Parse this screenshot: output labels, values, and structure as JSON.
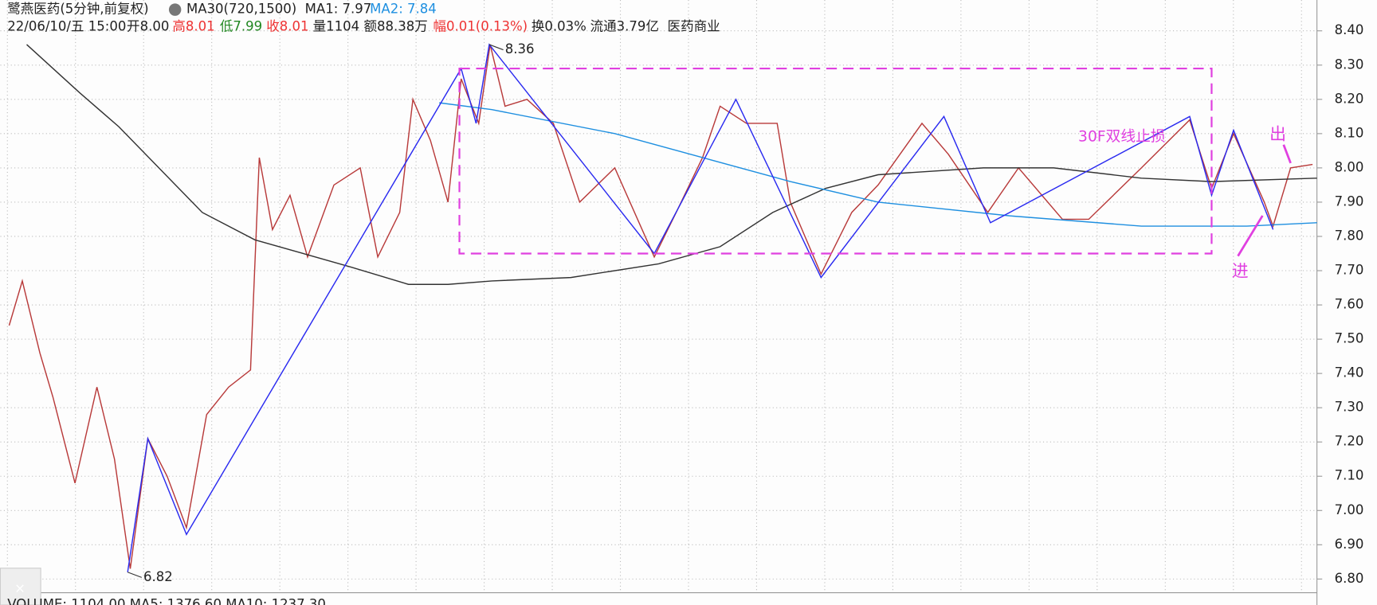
{
  "header": {
    "name": "鹭燕医药(5分钟,前复权)",
    "ma_setting": "MA30(720,1500)",
    "ma1": "MA1: 7.97",
    "ma2": "MA2: 7.84",
    "datetime": "22/06/10/五 15:00",
    "open": "开8.00",
    "high": "高8.01",
    "low": "低7.99",
    "close": "收8.01",
    "vol": "量1104",
    "amount": "额88.38万",
    "range": "幅0.01(0.13%)",
    "turnover": "换0.03%",
    "float": "流通3.79亿",
    "sector": "医药商业"
  },
  "footer": "VOLUME: 1104.00  MA5: 1376.60  MA10: 1237.30",
  "chart_data": {
    "type": "line",
    "xlim": [
      0,
      1500
    ],
    "ylim": [
      6.76,
      8.49
    ],
    "yticks": [
      {
        "value": 6.8,
        "label": "6.80"
      },
      {
        "value": 6.9,
        "label": "6.90"
      },
      {
        "value": 7.0,
        "label": "7.00"
      },
      {
        "value": 7.1,
        "label": "7.10"
      },
      {
        "value": 7.2,
        "label": "7.20"
      },
      {
        "value": 7.3,
        "label": "7.30"
      },
      {
        "value": 7.4,
        "label": "7.40"
      },
      {
        "value": 7.5,
        "label": "7.50"
      },
      {
        "value": 7.6,
        "label": "7.60"
      },
      {
        "value": 7.7,
        "label": "7.70"
      },
      {
        "value": 7.8,
        "label": "7.80"
      },
      {
        "value": 7.9,
        "label": "7.90"
      },
      {
        "value": 8.0,
        "label": "8.00"
      },
      {
        "value": 8.1,
        "label": "8.10"
      },
      {
        "value": 8.2,
        "label": "8.20"
      },
      {
        "value": 8.3,
        "label": "8.30"
      },
      {
        "value": 8.4,
        "label": "8.40"
      }
    ],
    "grid": true,
    "series": [
      {
        "color": "#b83a3a",
        "x": [
          10,
          25,
          45,
          60,
          85,
          110,
          130,
          148,
          168,
          190,
          212,
          235,
          260,
          285,
          295,
          310,
          330,
          350,
          380,
          410,
          430,
          455,
          470,
          490,
          510,
          525,
          545,
          558,
          575,
          600,
          630,
          660,
          700,
          745,
          770,
          800,
          820,
          850,
          885,
          900,
          935,
          970,
          1000,
          1050,
          1080,
          1125,
          1160,
          1210,
          1240,
          1300,
          1355,
          1380,
          1405,
          1440,
          1450,
          1470,
          1495
        ],
        "values": [
          7.54,
          7.67,
          7.46,
          7.33,
          7.08,
          7.36,
          7.15,
          6.83,
          7.21,
          7.1,
          6.95,
          7.28,
          7.36,
          7.41,
          8.03,
          7.82,
          7.92,
          7.74,
          7.95,
          8.0,
          7.74,
          7.87,
          8.2,
          8.08,
          7.9,
          8.26,
          8.13,
          8.36,
          8.18,
          8.2,
          8.13,
          7.9,
          8.0,
          7.74,
          7.87,
          8.03,
          8.18,
          8.13,
          8.13,
          7.9,
          7.69,
          7.87,
          7.95,
          8.13,
          8.04,
          7.87,
          8.0,
          7.85,
          7.85,
          8.0,
          8.14,
          7.94,
          8.1,
          7.9,
          7.83,
          8.0,
          8.01
        ]
      },
      {
        "color": "#333333",
        "x": [
          30,
          90,
          135,
          230,
          290,
          400,
          465,
          510,
          560,
          650,
          750,
          820,
          880,
          940,
          1000,
          1120,
          1200,
          1300,
          1380,
          1500
        ],
        "values": [
          8.36,
          8.22,
          8.12,
          7.87,
          7.79,
          7.71,
          7.66,
          7.66,
          7.67,
          7.68,
          7.72,
          7.77,
          7.87,
          7.94,
          7.98,
          8.0,
          8.0,
          7.97,
          7.96,
          7.97
        ]
      },
      {
        "color": "#1e8fe0",
        "x": [
          500,
          560,
          700,
          800,
          900,
          1000,
          1150,
          1300,
          1420,
          1500
        ],
        "values": [
          8.19,
          8.17,
          8.1,
          8.03,
          7.96,
          7.9,
          7.86,
          7.83,
          7.83,
          7.84
        ]
      },
      {
        "color": "#2a2af0",
        "x": [
          145,
          168,
          212,
          525,
          542,
          557,
          745,
          838,
          935,
          1075,
          1128,
          1355,
          1380,
          1405,
          1450
        ],
        "values": [
          6.82,
          7.21,
          6.93,
          8.29,
          8.13,
          8.36,
          7.75,
          8.2,
          7.68,
          8.15,
          7.84,
          8.15,
          7.92,
          8.11,
          7.82
        ]
      }
    ],
    "box": {
      "color": "#e040e0",
      "x": [
        523,
        1380
      ],
      "values": [
        8.29,
        7.75
      ]
    },
    "annotations": [
      {
        "text": "8.36",
        "x": 557,
        "y": 8.36
      },
      {
        "text": "6.82",
        "x": 145,
        "y": 6.82
      },
      {
        "text": "30F双线止损"
      },
      {
        "text": "进"
      },
      {
        "text": "出"
      }
    ]
  }
}
